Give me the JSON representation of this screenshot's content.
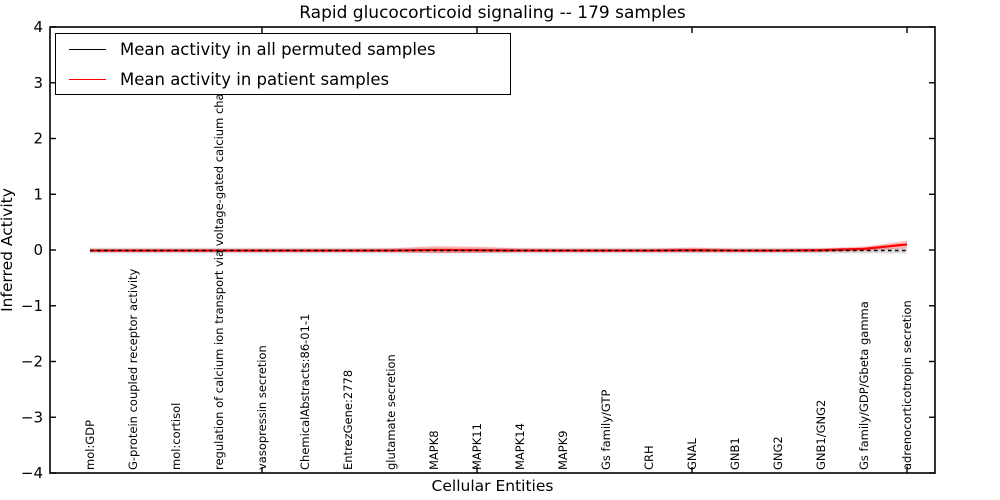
{
  "figure": {
    "title": "Rapid glucocorticoid signaling -- 179 samples",
    "xlabel": "Cellular Entities",
    "ylabel": "Inferred Activity"
  },
  "legend": {
    "entries": [
      {
        "label": "Mean activity in all permuted samples",
        "color": "#000000"
      },
      {
        "label": "Mean activity in patient samples",
        "color": "#ff0000"
      }
    ]
  },
  "chart_data": {
    "type": "line",
    "title": "Rapid glucocorticoid signaling -- 179 samples",
    "xlabel": "Cellular Entities",
    "ylabel": "Inferred Activity",
    "ylim": [
      -4,
      4
    ],
    "yticks": [
      4,
      3,
      2,
      1,
      0,
      -1,
      -2,
      -3,
      -4
    ],
    "ytick_labels": [
      "4",
      "3",
      "2",
      "1",
      "0",
      "−1",
      "−2",
      "−3",
      "−4"
    ],
    "xticks_at_category_numbers": [
      5,
      10,
      15,
      20
    ],
    "grid": false,
    "legend_position": "upper left",
    "category_labels_rotation_deg": 90,
    "categories": [
      "mol:GDP",
      "G-protein coupled receptor activity",
      "mol:cortisol",
      "regulation of calcium ion transport via voltage-gated calcium channel",
      "vasopressin secretion",
      "ChemicalAbstracts:86-01-1",
      "EntrezGene:2778",
      "glutamate secretion",
      "MAPK8",
      "MAPK11",
      "MAPK14",
      "MAPK9",
      "Gs family/GTP",
      "CRH",
      "GNAL",
      "GNB1",
      "GNG2",
      "GNB1/GNG2",
      "Gs family/GDP/Gbeta gamma",
      "adrenocorticotropin secretion"
    ],
    "series": [
      {
        "name": "Mean activity in all permuted samples",
        "color": "#000000",
        "line_style": "dashed",
        "band_color": "rgba(130,130,130,0.28)",
        "values": [
          -0.01,
          -0.01,
          -0.01,
          -0.01,
          -0.01,
          -0.01,
          -0.01,
          -0.01,
          -0.01,
          -0.01,
          -0.01,
          -0.01,
          -0.01,
          -0.01,
          -0.01,
          -0.01,
          -0.01,
          -0.01,
          -0.01,
          -0.01
        ],
        "band_upper": [
          0.04,
          0.04,
          0.04,
          0.04,
          0.04,
          0.04,
          0.04,
          0.04,
          0.04,
          0.04,
          0.04,
          0.04,
          0.04,
          0.04,
          0.04,
          0.04,
          0.04,
          0.04,
          0.04,
          0.04
        ],
        "band_lower": [
          -0.06,
          -0.06,
          -0.06,
          -0.06,
          -0.06,
          -0.06,
          -0.06,
          -0.06,
          -0.06,
          -0.06,
          -0.06,
          -0.06,
          -0.06,
          -0.06,
          -0.06,
          -0.06,
          -0.06,
          -0.06,
          -0.06,
          -0.06
        ]
      },
      {
        "name": "Mean activity in patient samples",
        "color": "#ff0000",
        "line_style": "solid",
        "band_color": "rgba(255,0,0,0.27)",
        "values": [
          -0.01,
          -0.01,
          -0.01,
          -0.01,
          -0.01,
          -0.01,
          -0.01,
          -0.01,
          0.0,
          -0.005,
          -0.01,
          -0.01,
          -0.01,
          -0.01,
          -0.005,
          -0.01,
          -0.01,
          -0.005,
          0.02,
          0.1
        ],
        "band_upper": [
          0.02,
          0.02,
          0.02,
          0.02,
          0.02,
          0.02,
          0.02,
          0.03,
          0.07,
          0.06,
          0.03,
          0.02,
          0.02,
          0.02,
          0.045,
          0.02,
          0.02,
          0.03,
          0.06,
          0.165
        ],
        "band_lower": [
          -0.04,
          -0.04,
          -0.04,
          -0.04,
          -0.04,
          -0.04,
          -0.04,
          -0.04,
          -0.06,
          -0.055,
          -0.04,
          -0.04,
          -0.04,
          -0.04,
          -0.045,
          -0.04,
          -0.04,
          -0.04,
          -0.02,
          0.035
        ]
      }
    ]
  }
}
